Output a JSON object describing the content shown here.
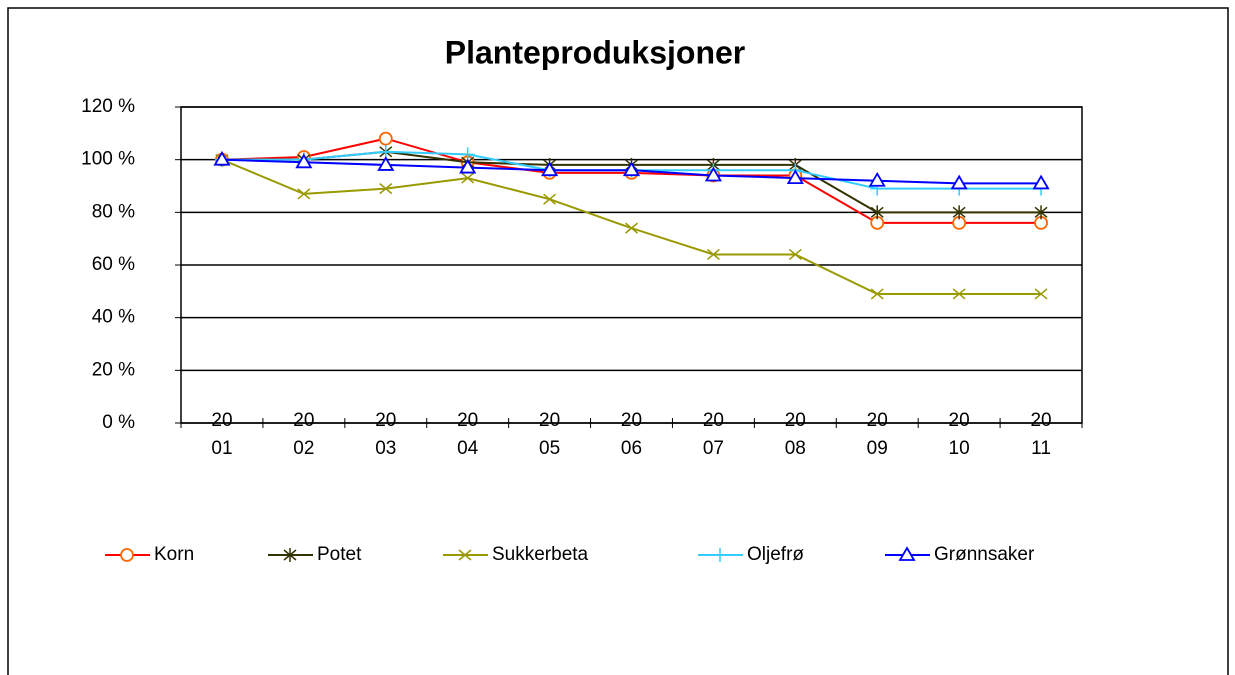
{
  "chart_data": {
    "type": "line",
    "title": "Planteproduksjoner",
    "categories": [
      "2001",
      "2002",
      "2003",
      "2004",
      "2005",
      "2006",
      "2007",
      "2008",
      "2009",
      "2010",
      "2011"
    ],
    "ylim": [
      0,
      120
    ],
    "yticks": [
      {
        "value": 0,
        "label": "0 %"
      },
      {
        "value": 20,
        "label": "20 %"
      },
      {
        "value": 40,
        "label": "40 %"
      },
      {
        "value": 60,
        "label": "60 %"
      },
      {
        "value": 80,
        "label": "80 %"
      },
      {
        "value": 100,
        "label": "100 %"
      },
      {
        "value": 120,
        "label": "120 %"
      }
    ],
    "grid": true,
    "legend": "bottom",
    "series": [
      {
        "name": "Korn",
        "color": "#ff0000",
        "marker": "circle",
        "marker_color": "#ff6600",
        "values": [
          100,
          101,
          108,
          99,
          95,
          95,
          94,
          94,
          76,
          76,
          76
        ]
      },
      {
        "name": "Potet",
        "color": "#333300",
        "marker": "star",
        "marker_color": "#333300",
        "values": [
          100,
          100,
          103,
          99,
          98,
          98,
          98,
          98,
          80,
          80,
          80
        ]
      },
      {
        "name": "Sukkerbeta",
        "color": "#999900",
        "marker": "x",
        "marker_color": "#999900",
        "values": [
          100,
          87,
          89,
          93,
          85,
          74,
          64,
          64,
          49,
          49,
          49
        ]
      },
      {
        "name": "Oljefrø",
        "color": "#33ccff",
        "marker": "plus",
        "marker_color": "#33ccff",
        "values": [
          100,
          100,
          103,
          102,
          96,
          96,
          96,
          96,
          89,
          89,
          89
        ]
      },
      {
        "name": "Grønnsaker",
        "color": "#0000ff",
        "marker": "triangle",
        "marker_color": "#0000ff",
        "values": [
          100,
          99,
          98,
          97,
          96,
          96,
          94,
          93,
          92,
          91,
          91
        ]
      }
    ]
  }
}
